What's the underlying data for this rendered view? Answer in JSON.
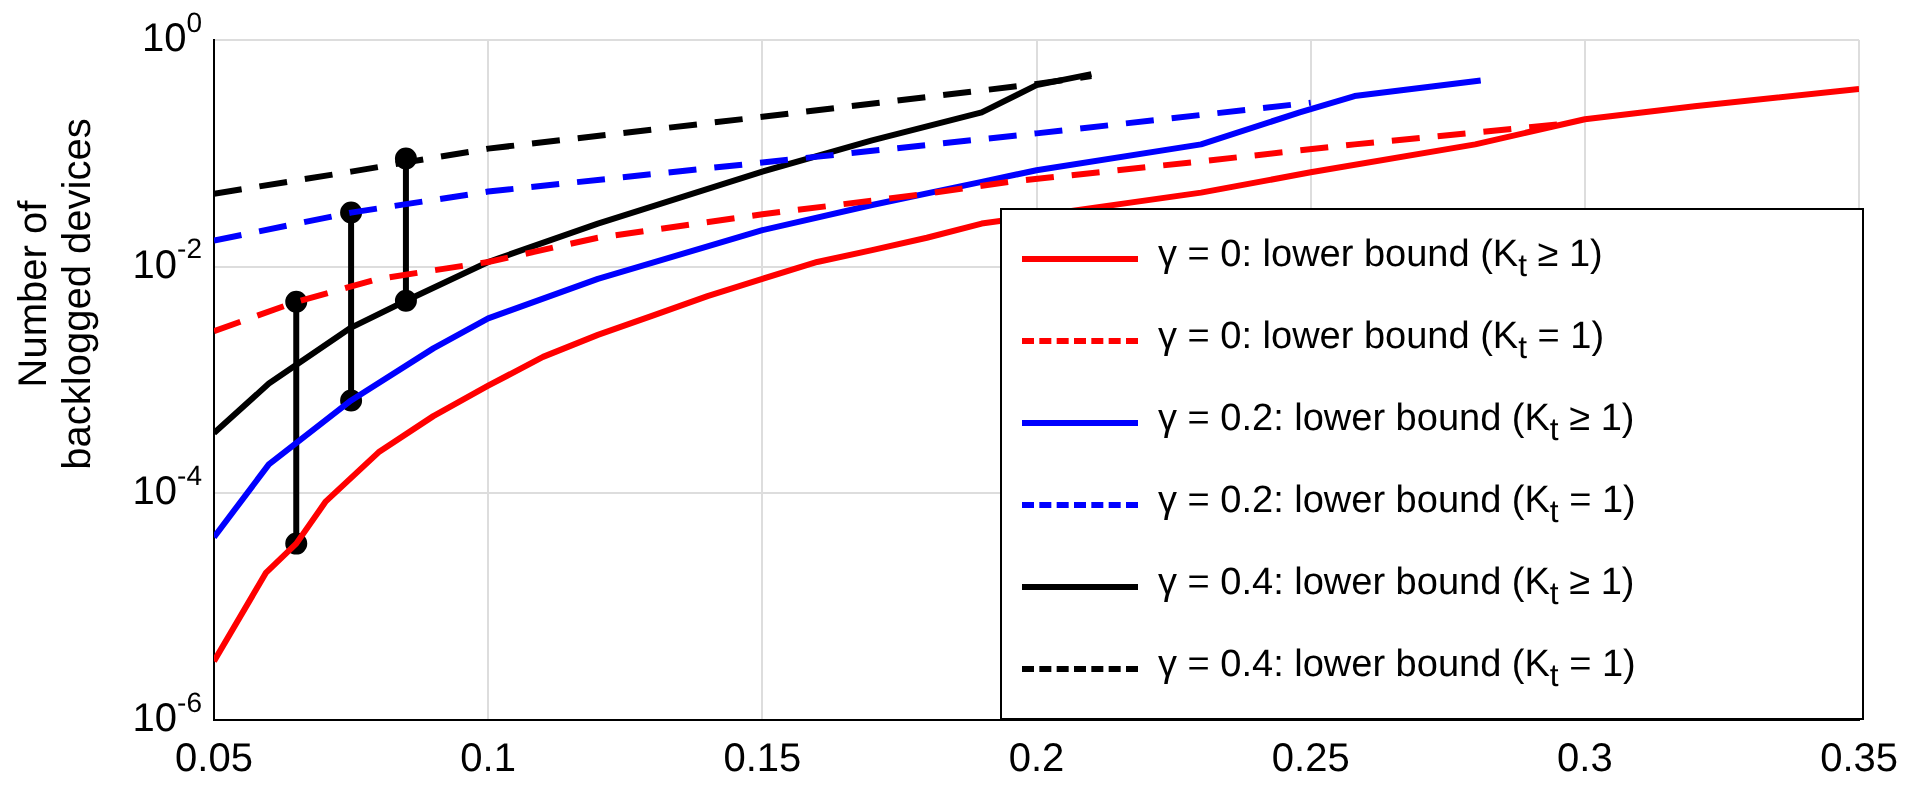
{
  "chart_data": {
    "type": "line",
    "ylabel": "Number of backlogged devices",
    "xlim": [
      0.05,
      0.35
    ],
    "xticks": [
      0.05,
      0.1,
      0.15,
      0.2,
      0.25,
      0.3,
      0.35
    ],
    "ylim": [
      1e-06,
      1
    ],
    "yticks": [
      {
        "value": 1e-06,
        "label": "10$^{-6}$"
      },
      {
        "value": 0.0001,
        "label": "10$^{-4}$"
      },
      {
        "value": 0.01,
        "label": "10$^{-2}$"
      },
      {
        "value": 1,
        "label": "10$^{0}$"
      }
    ],
    "log": "y",
    "grid": true,
    "legend": "bottom right",
    "marker": "none",
    "series": [
      {
        "name": "γ = 0: lower bound  (K$_{t}$ ≥ 1)",
        "color": "#ff0000",
        "line_style": "solid",
        "x": [
          0.05,
          0.0595,
          0.065,
          0.0704,
          0.08,
          0.09,
          0.1,
          0.11,
          0.12,
          0.13,
          0.14,
          0.15,
          0.16,
          0.17,
          0.18,
          0.19,
          0.23,
          0.25,
          0.28,
          0.3,
          0.32,
          0.35
        ],
        "values": [
          3.3e-06,
          2e-05,
          3.6e-05,
          8.5e-05,
          0.00023,
          0.00048,
          0.00089,
          0.0016,
          0.0025,
          0.0037,
          0.0055,
          0.0078,
          0.011,
          0.014,
          0.018,
          0.024,
          0.045,
          0.068,
          0.12,
          0.2,
          0.26,
          0.37
        ]
      },
      {
        "name": "γ = 0: lower bound  (K$_{t}$ = 1)",
        "color": "#ff0000",
        "line_style": "dashed",
        "x": [
          0.05,
          0.065,
          0.08,
          0.1,
          0.12,
          0.15,
          0.18,
          0.195,
          0.23,
          0.258,
          0.295
        ],
        "values": [
          0.0027,
          0.0049,
          0.0078,
          0.011,
          0.018,
          0.029,
          0.044,
          0.056,
          0.085,
          0.12,
          0.18
        ]
      },
      {
        "name": "γ = 0.2: lower bound  (K$_{t}$ ≥ 1)",
        "color": "#0000ff",
        "line_style": "solid",
        "x": [
          0.05,
          0.06,
          0.075,
          0.09,
          0.1,
          0.12,
          0.15,
          0.17,
          0.19,
          0.2,
          0.23,
          0.248,
          0.258,
          0.281
        ],
        "values": [
          4.1e-05,
          0.00018,
          0.00066,
          0.0019,
          0.0035,
          0.0078,
          0.021,
          0.035,
          0.056,
          0.071,
          0.12,
          0.23,
          0.32,
          0.44
        ]
      },
      {
        "name": "γ = 0.2: lower bound  (K$_{t}$ = 1)",
        "color": "#0000ff",
        "line_style": "dashed",
        "x": [
          0.05,
          0.075,
          0.1,
          0.15,
          0.2,
          0.25
        ],
        "values": [
          0.017,
          0.03,
          0.046,
          0.083,
          0.15,
          0.28
        ]
      },
      {
        "name": "γ = 0.4: lower bound  (K$_{t}$ ≥ 1)",
        "color": "#000000",
        "line_style": "solid",
        "x": [
          0.05,
          0.06,
          0.075,
          0.085,
          0.1,
          0.12,
          0.15,
          0.17,
          0.19,
          0.2,
          0.21
        ],
        "values": [
          0.00034,
          0.00093,
          0.0029,
          0.005,
          0.011,
          0.024,
          0.069,
          0.13,
          0.23,
          0.4,
          0.5
        ]
      },
      {
        "name": "γ = 0.4: lower bound  (K$_{t}$ = 1)",
        "color": "#000000",
        "line_style": "dashed",
        "x": [
          0.05,
          0.075,
          0.1,
          0.15,
          0.2,
          0.21
        ],
        "values": [
          0.044,
          0.069,
          0.11,
          0.21,
          0.41,
          0.48
        ]
      },
      {
        "color": "#000000",
        "line_style": "solid",
        "marker": "circle",
        "x": [
          0.065,
          0.065
        ],
        "values": [
          3.6e-05,
          0.0049
        ]
      },
      {
        "color": "#000000",
        "line_style": "solid",
        "marker": "circle",
        "x": [
          0.075,
          0.075
        ],
        "values": [
          0.00066,
          0.03
        ]
      },
      {
        "color": "#000000",
        "line_style": "solid",
        "marker": "circle",
        "x": [
          0.085,
          0.085
        ],
        "values": [
          0.005,
          0.09
        ]
      }
    ]
  }
}
